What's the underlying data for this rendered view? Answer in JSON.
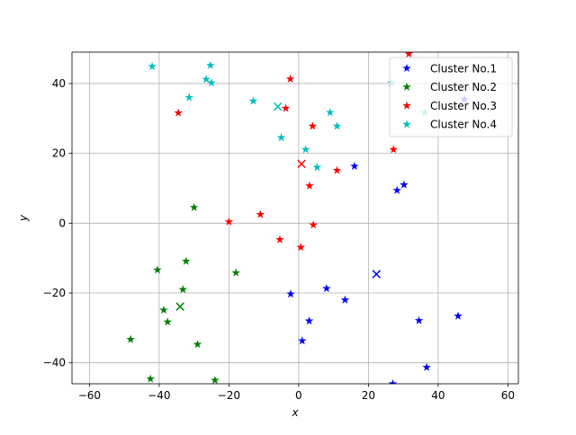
{
  "chart_data": {
    "type": "scatter",
    "title": "",
    "xlabel": "x",
    "ylabel": "y",
    "xlim": [
      -65,
      63
    ],
    "ylim": [
      -46,
      49
    ],
    "xticks": [
      -60,
      -40,
      -20,
      0,
      20,
      40,
      60
    ],
    "yticks": [
      -40,
      -20,
      0,
      20,
      40
    ],
    "grid": true,
    "legend_position": "top-right",
    "series": [
      {
        "name": "Cluster No.1",
        "color": "#0000ff",
        "marker": "star",
        "centroid": {
          "x": 22.3,
          "y": -14.6
        },
        "points": [
          {
            "x": 16.0,
            "y": 16.3
          },
          {
            "x": 28.2,
            "y": 9.4
          },
          {
            "x": 30.2,
            "y": 11.0
          },
          {
            "x": 47.5,
            "y": 35.4
          },
          {
            "x": -2.3,
            "y": -20.3
          },
          {
            "x": 8.0,
            "y": -18.7
          },
          {
            "x": 13.3,
            "y": -22.0
          },
          {
            "x": 3.0,
            "y": -28.0
          },
          {
            "x": 1.0,
            "y": -33.7
          },
          {
            "x": 34.5,
            "y": -27.9
          },
          {
            "x": 45.7,
            "y": -26.6
          },
          {
            "x": 36.7,
            "y": -41.3
          },
          {
            "x": 27.0,
            "y": -46.0
          }
        ]
      },
      {
        "name": "Cluster No.2",
        "color": "#008000",
        "marker": "star",
        "centroid": {
          "x": -34.0,
          "y": -23.9
        },
        "points": [
          {
            "x": -30.0,
            "y": 4.5
          },
          {
            "x": -40.5,
            "y": -13.4
          },
          {
            "x": -32.3,
            "y": -10.9
          },
          {
            "x": -18.0,
            "y": -14.2
          },
          {
            "x": -33.2,
            "y": -19.0
          },
          {
            "x": -38.7,
            "y": -24.9
          },
          {
            "x": -37.6,
            "y": -28.3
          },
          {
            "x": -48.2,
            "y": -33.3
          },
          {
            "x": -29.0,
            "y": -34.7
          },
          {
            "x": -42.5,
            "y": -44.6
          },
          {
            "x": -24.0,
            "y": -45.0
          }
        ]
      },
      {
        "name": "Cluster No.3",
        "color": "#ff0000",
        "marker": "star",
        "centroid": {
          "x": 0.8,
          "y": 17.0
        },
        "points": [
          {
            "x": 31.6,
            "y": 48.5
          },
          {
            "x": -2.4,
            "y": 41.3
          },
          {
            "x": -34.5,
            "y": 31.6
          },
          {
            "x": -3.7,
            "y": 32.9
          },
          {
            "x": 4.0,
            "y": 27.8
          },
          {
            "x": 27.2,
            "y": 21.1
          },
          {
            "x": 11.0,
            "y": 15.1
          },
          {
            "x": 3.1,
            "y": 10.7
          },
          {
            "x": -20.0,
            "y": 0.4
          },
          {
            "x": -11.0,
            "y": 2.5
          },
          {
            "x": 4.2,
            "y": -0.5
          },
          {
            "x": -5.4,
            "y": -4.7
          },
          {
            "x": 0.6,
            "y": -6.9
          }
        ]
      },
      {
        "name": "Cluster No.4",
        "color": "#00bfbf",
        "marker": "star",
        "centroid": {
          "x": -6.0,
          "y": 33.4
        },
        "points": [
          {
            "x": -42.0,
            "y": 44.9
          },
          {
            "x": -25.3,
            "y": 45.2
          },
          {
            "x": -26.5,
            "y": 41.2
          },
          {
            "x": -25.0,
            "y": 40.2
          },
          {
            "x": -31.4,
            "y": 36.0
          },
          {
            "x": -13.0,
            "y": 35.0
          },
          {
            "x": 26.6,
            "y": 40.2
          },
          {
            "x": 9.0,
            "y": 31.7
          },
          {
            "x": 36.2,
            "y": 31.7
          },
          {
            "x": 11.0,
            "y": 27.8
          },
          {
            "x": -5.0,
            "y": 24.5
          },
          {
            "x": 2.0,
            "y": 21.1
          },
          {
            "x": 5.3,
            "y": 16.0
          }
        ]
      }
    ]
  }
}
